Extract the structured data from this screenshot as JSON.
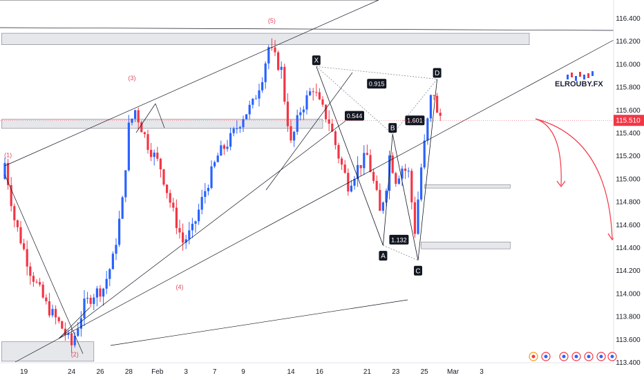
{
  "chart_data": {
    "type": "candlestick",
    "symbol_logo": "ELROUBY.FX",
    "current_price": "115.510",
    "ylim": [
      113.4,
      116.5
    ],
    "y_ticks": [
      "113.400",
      "113.600",
      "113.800",
      "114.000",
      "114.200",
      "114.400",
      "114.600",
      "114.800",
      "115.000",
      "115.200",
      "115.400",
      "115.600",
      "115.800",
      "116.000",
      "116.200",
      "116.400"
    ],
    "x_ticks": [
      {
        "label": "19",
        "bar": 6
      },
      {
        "label": "24",
        "bar": 21
      },
      {
        "label": "26",
        "bar": 30
      },
      {
        "label": "28",
        "bar": 39
      },
      {
        "label": "Feb",
        "bar": 48
      },
      {
        "label": "3",
        "bar": 57
      },
      {
        "label": "7",
        "bar": 66
      },
      {
        "label": "9",
        "bar": 75
      },
      {
        "label": "14",
        "bar": 90
      },
      {
        "label": "16",
        "bar": 99
      },
      {
        "label": "21",
        "bar": 114
      },
      {
        "label": "23",
        "bar": 123
      },
      {
        "label": "25",
        "bar": 132
      },
      {
        "label": "Mar",
        "bar": 141
      },
      {
        "label": "3",
        "bar": 150
      }
    ],
    "colors": {
      "up": "#2962ff",
      "down": "#f23645",
      "zone": "#e6e7eb",
      "zone_border": "#787b86",
      "wave": "#e04a62",
      "label_bg": "#131722"
    },
    "wave_labels": [
      {
        "text": "(1)",
        "bar": 1,
        "price": 115.19
      },
      {
        "text": "(2)",
        "bar": 22,
        "price": 113.45
      },
      {
        "text": "(3)",
        "bar": 40,
        "price": 115.86
      },
      {
        "text": "(4)",
        "bar": 55,
        "price": 114.04
      },
      {
        "text": "(5)",
        "bar": 84,
        "price": 116.36
      }
    ],
    "pattern_points": [
      {
        "text": "X",
        "bar": 98,
        "price": 115.98
      },
      {
        "text": "A",
        "bar": 119,
        "price": 114.42
      },
      {
        "text": "B",
        "bar": 122,
        "price": 115.39
      },
      {
        "text": "C",
        "bar": 130,
        "price": 114.29
      },
      {
        "text": "D",
        "bar": 136,
        "price": 115.87
      }
    ],
    "ratios": [
      {
        "text": "0.915",
        "bar": 117,
        "price": 115.83
      },
      {
        "text": "0.544",
        "bar": 110,
        "price": 115.55
      },
      {
        "text": "1.132",
        "bar": 124,
        "price": 114.47
      },
      {
        "text": "1.601",
        "bar": 129,
        "price": 115.51
      }
    ],
    "zones": [
      {
        "price_top": 116.27,
        "price_bottom": 116.17,
        "bar_from": -1,
        "bar_to": 165
      },
      {
        "price_top": 115.52,
        "price_bottom": 115.44,
        "bar_from": -1,
        "bar_to": 100
      },
      {
        "price_top": 113.58,
        "price_bottom": 113.41,
        "bar_from": -1,
        "bar_to": 28
      },
      {
        "price_top": 114.95,
        "price_bottom": 114.92,
        "bar_from": 132,
        "bar_to": 159
      },
      {
        "price_top": 114.45,
        "price_bottom": 114.39,
        "bar_from": 131,
        "bar_to": 159
      }
    ]
  }
}
